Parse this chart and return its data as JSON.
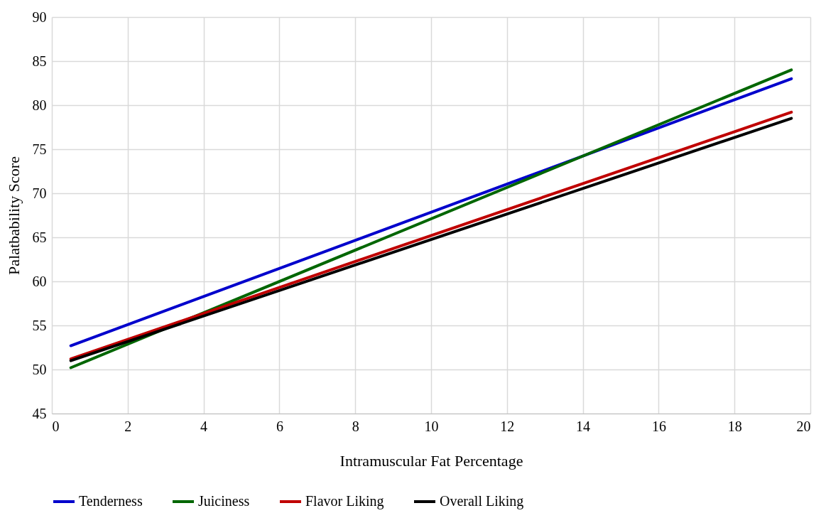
{
  "chart_data": {
    "type": "line",
    "xlabel": "Intramuscular Fat Percentage",
    "ylabel": "Palatbability Score",
    "x": [
      0.5,
      19.5
    ],
    "series": [
      {
        "name": "Tenderness",
        "color": "#0000cc",
        "values": [
          52.7,
          83.0
        ]
      },
      {
        "name": "Juiciness",
        "color": "#006600",
        "values": [
          50.2,
          84.0
        ]
      },
      {
        "name": "Flavor Liking",
        "color": "#c00000",
        "values": [
          51.2,
          79.2
        ]
      },
      {
        "name": "Overall Liking",
        "color": "#000000",
        "values": [
          51.0,
          78.5
        ]
      }
    ],
    "xlim": [
      0,
      20
    ],
    "xticks": [
      0,
      2,
      4,
      6,
      8,
      10,
      12,
      14,
      16,
      18,
      20
    ],
    "ylim": [
      45,
      90
    ],
    "yticks": [
      45,
      50,
      55,
      60,
      65,
      70,
      75,
      80,
      85,
      90
    ],
    "grid": true,
    "legend": "bottom",
    "marker": "none",
    "line_style": "solid"
  }
}
